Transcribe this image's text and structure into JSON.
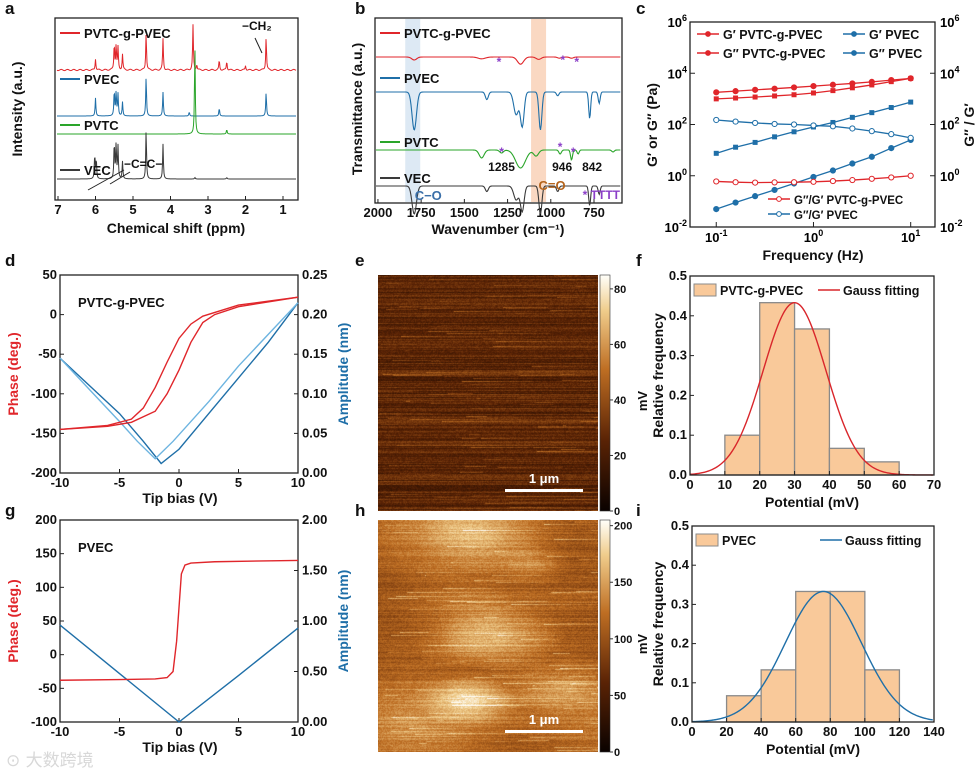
{
  "panel_labels": [
    "a",
    "b",
    "c",
    "d",
    "e",
    "f",
    "g",
    "h",
    "i"
  ],
  "watermark": "大数跨境",
  "chart_data": [
    {
      "id": "a",
      "type": "line",
      "xlabel": "Chemical shift (ppm)",
      "ylabel": "Intensity (a.u.)",
      "xlim": [
        7,
        0.6
      ],
      "xticks": [
        "7",
        "6",
        "5",
        "4",
        "3",
        "2",
        "1"
      ],
      "xtick_values": [
        7,
        6,
        5,
        4,
        3,
        2,
        1
      ],
      "series": [
        {
          "name": "PVTC-g-PVEC",
          "color": "#e0262b",
          "peaks": [
            [
              6.0,
              0.25
            ],
            [
              5.5,
              0.6
            ],
            [
              5.45,
              0.55
            ],
            [
              5.4,
              0.5
            ],
            [
              5.28,
              0.35
            ],
            [
              4.65,
              0.85
            ],
            [
              4.2,
              0.7
            ],
            [
              3.4,
              1.0
            ],
            [
              3.3,
              0.12
            ],
            [
              2.7,
              0.22
            ],
            [
              2.5,
              0.2
            ],
            [
              2.0,
              0.1
            ],
            [
              1.45,
              0.75
            ]
          ]
        },
        {
          "name": "PVEC",
          "color": "#1f6fa8",
          "peaks": [
            [
              6.0,
              0.45
            ],
            [
              5.5,
              0.65
            ],
            [
              5.45,
              0.6
            ],
            [
              5.4,
              0.55
            ],
            [
              5.28,
              0.35
            ],
            [
              4.65,
              1.0
            ],
            [
              4.2,
              0.6
            ],
            [
              3.5,
              0.1
            ],
            [
              2.7,
              0.2
            ],
            [
              1.45,
              0.6
            ]
          ]
        },
        {
          "name": "PVTC",
          "color": "#2aa52a",
          "peaks": [
            [
              3.35,
              1.0
            ],
            [
              2.5,
              0.05
            ]
          ]
        },
        {
          "name": "VEC",
          "color": "#3a3a3a",
          "peaks": [
            [
              6.02,
              0.5
            ],
            [
              5.98,
              0.4
            ],
            [
              5.5,
              0.75
            ],
            [
              5.45,
              0.7
            ],
            [
              5.4,
              0.65
            ],
            [
              5.28,
              0.35
            ],
            [
              4.65,
              1.0
            ],
            [
              4.2,
              0.7
            ],
            [
              3.35,
              0.03
            ],
            [
              2.5,
              0.03
            ]
          ]
        }
      ],
      "annotations": [
        "−CH₂",
        "−C=C−"
      ]
    },
    {
      "id": "b",
      "type": "line",
      "xlabel": "Wavenumber (cm⁻¹)",
      "ylabel": "Transmittance (a.u.)",
      "xlim": [
        2017,
        588
      ],
      "xticks": [
        "2000",
        "1750",
        "1500",
        "1250",
        "1000",
        "750"
      ],
      "xtick_values": [
        2000,
        1750,
        1500,
        1250,
        1000,
        750
      ],
      "bands": [
        {
          "label": "C−O",
          "center": 1790,
          "color": "#cfe0f0"
        },
        {
          "label": "C=O",
          "center": 1062,
          "color": "#f8c8a8"
        }
      ],
      "series": [
        {
          "name": "PVTC-g-PVEC",
          "color": "#e0262b",
          "dips": [
            [
              1790,
              0.25,
              20
            ],
            [
              1400,
              0.15,
              30
            ],
            [
              1175,
              0.6,
              25
            ],
            [
              1070,
              0.2,
              20
            ],
            [
              950,
              0.1,
              15
            ],
            [
              880,
              0.1,
              15
            ]
          ]
        },
        {
          "name": "PVEC",
          "color": "#1f6fa8",
          "dips": [
            [
              1790,
              1.0,
              18
            ],
            [
              1370,
              0.2,
              12
            ],
            [
              1200,
              0.6,
              20
            ],
            [
              1165,
              0.9,
              15
            ],
            [
              1060,
              1.0,
              12
            ],
            [
              960,
              0.1,
              10
            ],
            [
              775,
              0.7,
              8
            ],
            [
              720,
              0.3,
              8
            ]
          ]
        },
        {
          "name": "PVTC",
          "color": "#2aa52a",
          "dips": [
            [
              1400,
              0.4,
              20
            ],
            [
              1285,
              0.15,
              15
            ],
            [
              1175,
              0.9,
              40
            ],
            [
              1085,
              0.3,
              20
            ],
            [
              946,
              0.2,
              10
            ],
            [
              880,
              0.5,
              8
            ],
            [
              842,
              0.2,
              8
            ],
            [
              640,
              0.1,
              10
            ]
          ]
        },
        {
          "name": "VEC",
          "color": "#3a3a3a",
          "dips": [
            [
              1790,
              1.0,
              18
            ],
            [
              1370,
              0.2,
              12
            ],
            [
              1200,
              0.5,
              20
            ],
            [
              1165,
              0.9,
              15
            ],
            [
              1060,
              1.0,
              12
            ],
            [
              960,
              0.2,
              10
            ],
            [
              775,
              0.7,
              8
            ],
            [
              720,
              0.3,
              8
            ]
          ]
        }
      ],
      "peak_labels": [
        "1285",
        "946",
        "842"
      ],
      "legend_star": "* TTTT"
    },
    {
      "id": "c",
      "type": "line",
      "xscale": "log",
      "yscale": "log",
      "xlabel": "Frequency (Hz)",
      "ylabel": "G′ or G″ (Pa)",
      "ylabel_right": "G″ / G′",
      "xlim": [
        0.054,
        17.8
      ],
      "ylim": [
        0.01,
        1000000
      ],
      "xticks_exp": [
        "-1",
        "0",
        "1"
      ],
      "yticks_exp": [
        "-2",
        "0",
        "2",
        "4",
        "6"
      ],
      "x": [
        0.1,
        0.158,
        0.251,
        0.398,
        0.631,
        1.0,
        1.585,
        2.512,
        3.981,
        6.31,
        10
      ],
      "series": [
        {
          "name": "G′ PVTC-g-PVEC",
          "color": "#e0262b",
          "marker": "square",
          "values": [
            1000,
            1080,
            1180,
            1300,
            1450,
            1700,
            2100,
            2700,
            3500,
            4700,
            6300
          ]
        },
        {
          "name": "G″ PVTC-g-PVEC",
          "color": "#e0262b",
          "marker": "circle",
          "values": [
            1800,
            2000,
            2250,
            2500,
            2800,
            3150,
            3550,
            4000,
            4600,
            5400,
            6300
          ]
        },
        {
          "name": "G′ PVEC",
          "color": "#1f6fa8",
          "marker": "circle",
          "values": [
            0.05,
            0.09,
            0.16,
            0.28,
            0.5,
            0.9,
            1.6,
            3.0,
            5.5,
            12,
            25
          ]
        },
        {
          "name": "G″ PVEC",
          "color": "#1f6fa8",
          "marker": "square",
          "values": [
            7.5,
            13,
            20,
            33,
            52,
            80,
            120,
            190,
            290,
            460,
            750
          ]
        },
        {
          "name": "G″/G′ PVTC-g-PVEC",
          "color": "#e0262b",
          "marker": "open-circle",
          "values": [
            0.6,
            0.56,
            0.54,
            0.55,
            0.56,
            0.58,
            0.62,
            0.68,
            0.76,
            0.86,
            1.0
          ]
        },
        {
          "name": "G″/G′ PVEC",
          "color": "#1f6fa8",
          "marker": "open-circle",
          "values": [
            150,
            130,
            115,
            105,
            100,
            92,
            85,
            70,
            55,
            42,
            30
          ]
        }
      ]
    },
    {
      "id": "d",
      "type": "line",
      "title": "PVTC-g-PVEC",
      "xlabel": "Tip bias (V)",
      "ylabel": "Phase (deg.)",
      "ylabel_right": "Amplitude (nm)",
      "xlim": [
        -10,
        10
      ],
      "ylim": [
        -200,
        50
      ],
      "ylim_right": [
        0,
        0.25
      ],
      "xticks": [
        "-10",
        "-5",
        "0",
        "5",
        "10"
      ],
      "xtick_values": [
        -10,
        -5,
        0,
        5,
        10
      ],
      "yticks": [
        "-200",
        "-150",
        "-100",
        "-50",
        "0",
        "50"
      ],
      "ytick_values": [
        -200,
        -150,
        -100,
        -50,
        0,
        50
      ],
      "yticks_right": [
        "0.00",
        "0.05",
        "0.10",
        "0.15",
        "0.20",
        "0.25"
      ],
      "ytick_right_values": [
        0,
        0.05,
        0.1,
        0.15,
        0.2,
        0.25
      ],
      "phase_series": [
        {
          "name": "phase-forward",
          "color": "#e0262b",
          "points": [
            [
              -10,
              -145
            ],
            [
              -6,
              -140
            ],
            [
              -4,
              -132
            ],
            [
              -3,
              -118
            ],
            [
              -2,
              -92
            ],
            [
              -1,
              -60
            ],
            [
              0,
              -30
            ],
            [
              1,
              -12
            ],
            [
              2,
              -2
            ],
            [
              5,
              12
            ],
            [
              10,
              22
            ]
          ]
        },
        {
          "name": "phase-reverse",
          "color": "#e0262b",
          "points": [
            [
              -10,
              -145
            ],
            [
              -6,
              -141
            ],
            [
              -4,
              -136
            ],
            [
              -2,
              -122
            ],
            [
              -1,
              -100
            ],
            [
              0,
              -70
            ],
            [
              1,
              -35
            ],
            [
              2,
              -10
            ],
            [
              3,
              0
            ],
            [
              5,
              10
            ],
            [
              10,
              22
            ]
          ]
        }
      ],
      "amplitude_series": [
        {
          "name": "amplitude-dark",
          "color": "#1f6fa8",
          "points": [
            [
              -10,
              0.145
            ],
            [
              -7.5,
              0.11
            ],
            [
              -5,
              0.075
            ],
            [
              -3,
              0.04
            ],
            [
              -1.5,
              0.012
            ],
            [
              0,
              0.03
            ],
            [
              2.5,
              0.075
            ],
            [
              5,
              0.12
            ],
            [
              7.5,
              0.165
            ],
            [
              10,
              0.215
            ]
          ]
        },
        {
          "name": "amplitude-light",
          "color": "#6db4e0",
          "points": [
            [
              -10,
              0.145
            ],
            [
              -7.5,
              0.105
            ],
            [
              -5,
              0.065
            ],
            [
              -3.5,
              0.04
            ],
            [
              -2,
              0.018
            ],
            [
              -0.5,
              0.04
            ],
            [
              2.5,
              0.09
            ],
            [
              5,
              0.135
            ],
            [
              7.5,
              0.175
            ],
            [
              10,
              0.215
            ]
          ]
        }
      ]
    },
    {
      "id": "e",
      "type": "heatmap",
      "colorbar_label": "mV",
      "colorbar_ticks": [
        "0",
        "20",
        "40",
        "60",
        "80"
      ],
      "colorbar_range": [
        0,
        85
      ],
      "scalebar": "1 μm"
    },
    {
      "id": "f",
      "type": "bar",
      "xlabel": "Potential (mV)",
      "ylabel": "Relative frequency",
      "xlim": [
        0,
        70
      ],
      "ylim": [
        0,
        0.5
      ],
      "xticks": [
        "0",
        "10",
        "20",
        "30",
        "40",
        "50",
        "60",
        "70"
      ],
      "xtick_values": [
        0,
        10,
        20,
        30,
        40,
        50,
        60,
        70
      ],
      "yticks": [
        "0.0",
        "0.1",
        "0.2",
        "0.3",
        "0.4",
        "0.5"
      ],
      "ytick_values": [
        0,
        0.1,
        0.2,
        0.3,
        0.4,
        0.5
      ],
      "bins": [
        [
          10,
          20,
          0.1
        ],
        [
          20,
          30,
          0.433
        ],
        [
          30,
          40,
          0.367
        ],
        [
          40,
          50,
          0.067
        ],
        [
          50,
          60,
          0.033
        ]
      ],
      "legend": [
        "PVTC-g-PVEC",
        "Gauss fitting"
      ],
      "gauss": {
        "mean": 30,
        "sigma": 9,
        "peak": 0.433,
        "color": "#d9262b"
      }
    },
    {
      "id": "g",
      "type": "line",
      "title": "PVEC",
      "xlabel": "Tip bias (V)",
      "ylabel": "Phase (deg.)",
      "ylabel_right": "Amplitude (nm)",
      "xlim": [
        -10,
        10
      ],
      "ylim": [
        -100,
        200
      ],
      "ylim_right": [
        0,
        2
      ],
      "xticks": [
        "-10",
        "-5",
        "0",
        "5",
        "10"
      ],
      "xtick_values": [
        -10,
        -5,
        0,
        5,
        10
      ],
      "yticks": [
        "-100",
        "-50",
        "0",
        "50",
        "100",
        "150",
        "200"
      ],
      "ytick_values": [
        -100,
        -50,
        0,
        50,
        100,
        150,
        200
      ],
      "yticks_right": [
        "0.00",
        "0.50",
        "1.00",
        "1.50",
        "2.00"
      ],
      "ytick_right_values": [
        0,
        0.5,
        1,
        1.5,
        2
      ],
      "phase_series": [
        {
          "name": "phase",
          "color": "#e0262b",
          "points": [
            [
              -10,
              -38
            ],
            [
              -5,
              -37
            ],
            [
              -2,
              -36
            ],
            [
              -1,
              -34
            ],
            [
              -0.5,
              -25
            ],
            [
              -0.2,
              20
            ],
            [
              0,
              70
            ],
            [
              0.2,
              120
            ],
            [
              0.5,
              133
            ],
            [
              1,
              136
            ],
            [
              3,
              138
            ],
            [
              10,
              140
            ]
          ]
        }
      ],
      "amplitude_series": [
        {
          "name": "amplitude",
          "color": "#1f6fa8",
          "points": [
            [
              -10,
              0.96
            ],
            [
              -5,
              0.48
            ],
            [
              0,
              0.0
            ],
            [
              5,
              0.46
            ],
            [
              10,
              0.93
            ]
          ]
        }
      ]
    },
    {
      "id": "h",
      "type": "heatmap",
      "colorbar_label": "mV",
      "colorbar_ticks": [
        "0",
        "50",
        "100",
        "150",
        "200"
      ],
      "colorbar_range": [
        0,
        205
      ],
      "scalebar": "1 μm"
    },
    {
      "id": "i",
      "type": "bar",
      "xlabel": "Potential (mV)",
      "ylabel": "Relative frequency",
      "xlim": [
        0,
        140
      ],
      "ylim": [
        0,
        0.5
      ],
      "xticks": [
        "0",
        "20",
        "40",
        "60",
        "80",
        "100",
        "120",
        "140"
      ],
      "xtick_values": [
        0,
        20,
        40,
        60,
        80,
        100,
        120,
        140
      ],
      "yticks": [
        "0.0",
        "0.1",
        "0.2",
        "0.3",
        "0.4",
        "0.5"
      ],
      "ytick_values": [
        0,
        0.1,
        0.2,
        0.3,
        0.4,
        0.5
      ],
      "bins": [
        [
          20,
          40,
          0.067
        ],
        [
          40,
          60,
          0.133
        ],
        [
          60,
          80,
          0.333
        ],
        [
          80,
          100,
          0.333
        ],
        [
          100,
          120,
          0.133
        ]
      ],
      "legend": [
        "PVEC",
        "Gauss fitting"
      ],
      "gauss": {
        "mean": 76,
        "sigma": 22,
        "peak": 0.333,
        "color": "#1f6fa8"
      }
    }
  ]
}
